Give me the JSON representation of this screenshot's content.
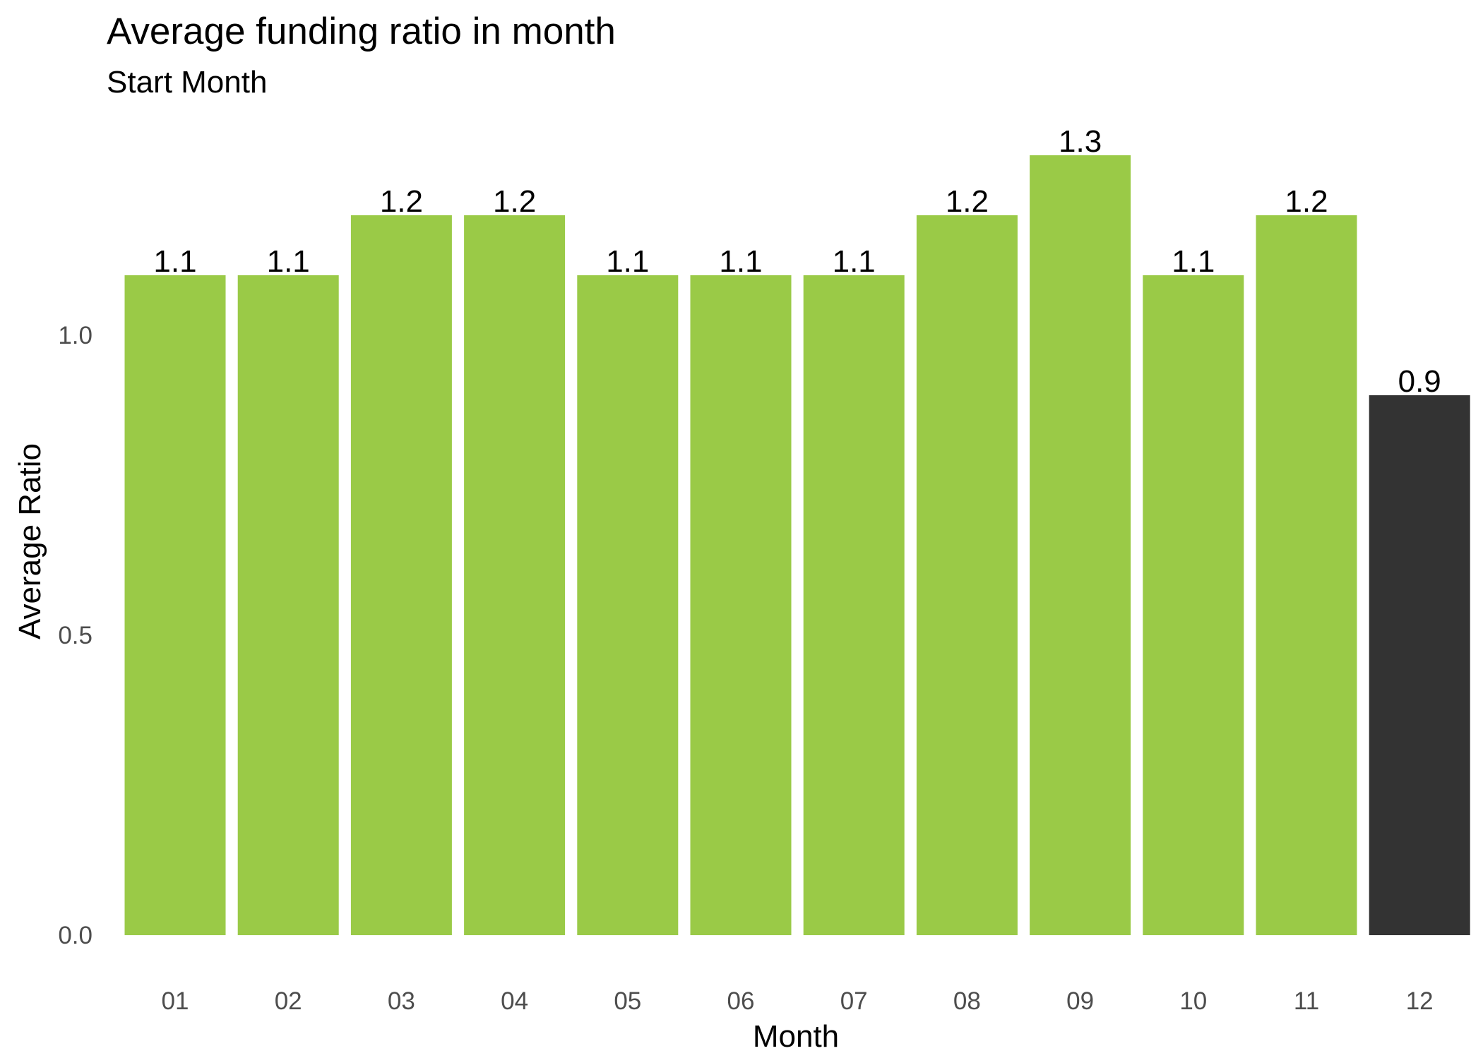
{
  "chart_data": {
    "type": "bar",
    "title": "Average funding ratio in month",
    "subtitle": "Start Month",
    "xlabel": "Month",
    "ylabel": "Average Ratio",
    "categories": [
      "01",
      "02",
      "03",
      "04",
      "05",
      "06",
      "07",
      "08",
      "09",
      "10",
      "11",
      "12"
    ],
    "values": [
      1.1,
      1.1,
      1.2,
      1.2,
      1.1,
      1.1,
      1.1,
      1.2,
      1.3,
      1.1,
      1.2,
      0.9
    ],
    "data_labels": [
      "1.1",
      "1.1",
      "1.2",
      "1.2",
      "1.1",
      "1.1",
      "1.1",
      "1.2",
      "1.3",
      "1.1",
      "1.2",
      "0.9"
    ],
    "ylim": [
      0,
      1.3
    ],
    "yticks": [
      0.0,
      0.5,
      1.0
    ],
    "ytick_labels": [
      "0.0",
      "0.5",
      "1.0"
    ],
    "grid": false,
    "legend": "none",
    "colors": {
      "bar": "#9aca47",
      "highlight_bar": "#333333",
      "tick_text": "#4d4d4d",
      "text": "#000000"
    },
    "highlight_categories": [
      "12"
    ]
  }
}
